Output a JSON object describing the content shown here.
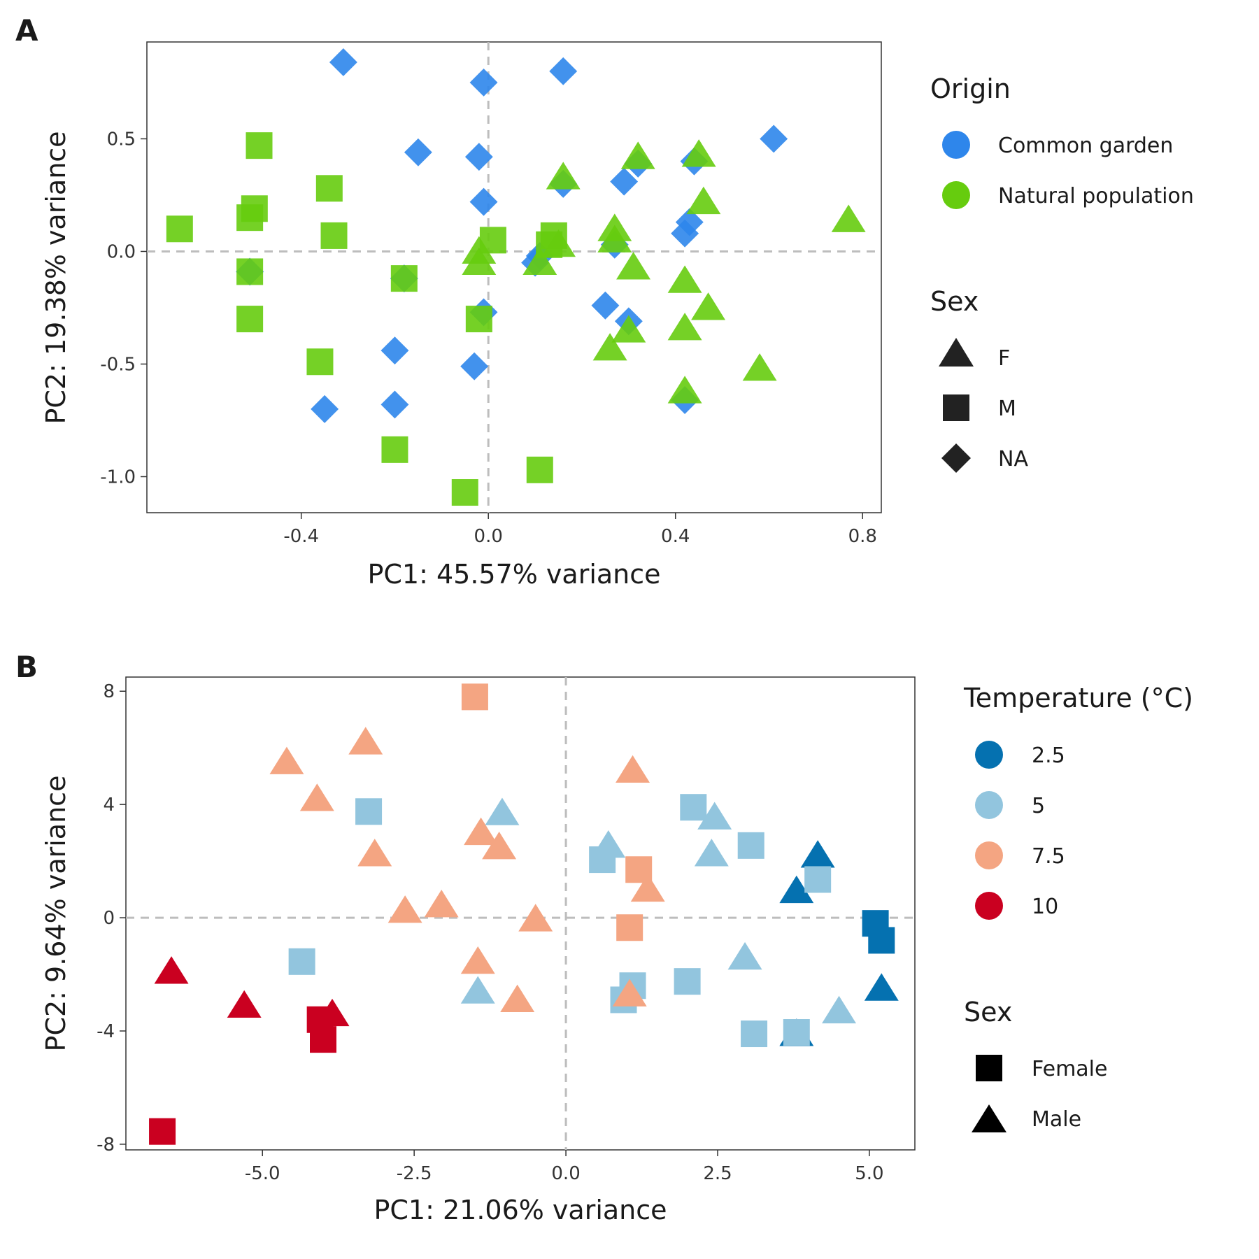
{
  "chart_data": [
    {
      "panel": "A",
      "type": "scatter",
      "xlabel": "PC1: 45.57% variance",
      "ylabel": "PC2: 19.38% variance",
      "xticks": [
        -0.4,
        0.0,
        0.4,
        0.8
      ],
      "xtick_labels": [
        "-0.4",
        "0.0",
        "0.4",
        "0.8"
      ],
      "yticks": [
        -1.0,
        -0.5,
        0.0,
        0.5
      ],
      "ytick_labels": [
        "-1.0",
        "-0.5",
        "0.0",
        "0.5"
      ],
      "xlim": [
        -0.73,
        0.84
      ],
      "ylim": [
        -1.16,
        0.93
      ],
      "reference_lines": {
        "x": 0,
        "y": 0
      },
      "grid": false,
      "color_legend": {
        "title": "Origin",
        "entries": [
          {
            "label": "Common garden",
            "color": "#2E86EB"
          },
          {
            "label": "Natural population",
            "color": "#66CC0E"
          }
        ]
      },
      "shape_legend": {
        "title": "Sex",
        "entries": [
          {
            "label": "F",
            "shape": "triangle"
          },
          {
            "label": "M",
            "shape": "square"
          },
          {
            "label": "NA",
            "shape": "diamond"
          }
        ]
      },
      "series": [
        {
          "group": "Common garden",
          "shape": "diamond",
          "points": [
            [
              -0.31,
              0.84
            ],
            [
              -0.01,
              0.75
            ],
            [
              0.16,
              0.8
            ],
            [
              0.61,
              0.5
            ],
            [
              -0.15,
              0.44
            ],
            [
              -0.02,
              0.42
            ],
            [
              -0.01,
              0.22
            ],
            [
              0.29,
              0.31
            ],
            [
              0.32,
              0.39
            ],
            [
              0.44,
              0.4
            ],
            [
              0.16,
              0.3
            ],
            [
              0.43,
              0.13
            ],
            [
              0.42,
              0.08
            ],
            [
              0.11,
              -0.02
            ],
            [
              0.27,
              0.03
            ],
            [
              -0.51,
              -0.09
            ],
            [
              -0.18,
              -0.12
            ],
            [
              -0.01,
              -0.27
            ],
            [
              0.25,
              -0.24
            ],
            [
              0.3,
              -0.31
            ],
            [
              -0.2,
              -0.44
            ],
            [
              -0.03,
              -0.51
            ],
            [
              -0.35,
              -0.7
            ],
            [
              -0.2,
              -0.68
            ],
            [
              0.42,
              -0.66
            ],
            [
              0.1,
              -0.05
            ]
          ]
        },
        {
          "group": "Natural population",
          "shape": "triangle",
          "points": [
            [
              0.32,
              0.42
            ],
            [
              0.45,
              0.43
            ],
            [
              0.16,
              0.33
            ],
            [
              0.46,
              0.22
            ],
            [
              0.77,
              0.14
            ],
            [
              0.27,
              0.1
            ],
            [
              0.27,
              0.05
            ],
            [
              0.15,
              0.03
            ],
            [
              -0.02,
              0.0
            ],
            [
              -0.02,
              -0.05
            ],
            [
              0.11,
              -0.05
            ],
            [
              0.31,
              -0.07
            ],
            [
              0.42,
              -0.13
            ],
            [
              0.47,
              -0.25
            ],
            [
              0.42,
              -0.34
            ],
            [
              0.3,
              -0.35
            ],
            [
              0.26,
              -0.43
            ],
            [
              0.58,
              -0.52
            ],
            [
              0.42,
              -0.62
            ]
          ]
        },
        {
          "group": "Natural population",
          "shape": "square",
          "points": [
            [
              -0.49,
              0.47
            ],
            [
              -0.34,
              0.28
            ],
            [
              -0.5,
              0.19
            ],
            [
              -0.51,
              0.15
            ],
            [
              -0.66,
              0.1
            ],
            [
              -0.33,
              0.07
            ],
            [
              0.01,
              0.05
            ],
            [
              0.14,
              0.07
            ],
            [
              0.13,
              0.03
            ],
            [
              -0.51,
              -0.09
            ],
            [
              -0.18,
              -0.12
            ],
            [
              -0.02,
              -0.3
            ],
            [
              -0.51,
              -0.3
            ],
            [
              -0.36,
              -0.49
            ],
            [
              -0.2,
              -0.88
            ],
            [
              0.11,
              -0.97
            ],
            [
              -0.05,
              -1.07
            ]
          ]
        }
      ]
    },
    {
      "panel": "B",
      "type": "scatter",
      "xlabel": "PC1: 21.06% variance",
      "ylabel": "PC2: 9.64% variance",
      "xticks": [
        -5.0,
        -2.5,
        0.0,
        2.5,
        5.0
      ],
      "xtick_labels": [
        "-5.0",
        "-2.5",
        "0.0",
        "2.5",
        "5.0"
      ],
      "yticks": [
        -8,
        -4,
        0,
        4,
        8
      ],
      "ytick_labels": [
        "-8",
        "-4",
        "0",
        "4",
        "8"
      ],
      "xlim": [
        -7.25,
        5.75
      ],
      "ylim": [
        -8.2,
        8.5
      ],
      "reference_lines": {
        "x": 0,
        "y": 0
      },
      "grid": false,
      "color_legend": {
        "title": "Temperature (°C)",
        "entries": [
          {
            "label": "2.5",
            "color": "#0571B0"
          },
          {
            "label": "5",
            "color": "#92C5DE"
          },
          {
            "label": "7.5",
            "color": "#F4A582"
          },
          {
            "label": "10",
            "color": "#CA0020"
          }
        ]
      },
      "shape_legend": {
        "title": "Sex",
        "entries": [
          {
            "label": "Female",
            "shape": "square"
          },
          {
            "label": "Male",
            "shape": "triangle"
          }
        ]
      },
      "series": [
        {
          "temperature": "2.5",
          "shape": "square",
          "points": [
            [
              5.1,
              -0.2
            ],
            [
              5.2,
              -0.8
            ]
          ]
        },
        {
          "temperature": "2.5",
          "shape": "triangle",
          "points": [
            [
              4.15,
              2.2
            ],
            [
              3.8,
              0.95
            ],
            [
              5.2,
              -2.5
            ],
            [
              3.8,
              -4.1
            ]
          ]
        },
        {
          "temperature": "5",
          "shape": "square",
          "points": [
            [
              -3.25,
              3.75
            ],
            [
              0.6,
              2.05
            ],
            [
              2.1,
              3.9
            ],
            [
              3.05,
              2.55
            ],
            [
              4.15,
              1.35
            ],
            [
              -4.35,
              -1.55
            ],
            [
              1.1,
              -2.4
            ],
            [
              0.95,
              -2.9
            ],
            [
              2.0,
              -2.25
            ],
            [
              3.1,
              -4.1
            ],
            [
              3.8,
              -4.05
            ]
          ]
        },
        {
          "temperature": "5",
          "shape": "triangle",
          "points": [
            [
              -1.05,
              3.7
            ],
            [
              0.7,
              2.55
            ],
            [
              2.45,
              3.55
            ],
            [
              2.4,
              2.25
            ],
            [
              2.95,
              -1.4
            ],
            [
              -1.45,
              -2.6
            ],
            [
              4.5,
              -3.3
            ]
          ]
        },
        {
          "temperature": "7.5",
          "shape": "square",
          "points": [
            [
              -1.5,
              7.8
            ],
            [
              1.2,
              1.7
            ],
            [
              1.05,
              -0.35
            ]
          ]
        },
        {
          "temperature": "7.5",
          "shape": "triangle",
          "points": [
            [
              -4.6,
              5.5
            ],
            [
              -3.3,
              6.2
            ],
            [
              -4.1,
              4.2
            ],
            [
              1.1,
              5.2
            ],
            [
              -1.4,
              3.0
            ],
            [
              -1.1,
              2.5
            ],
            [
              -3.15,
              2.25
            ],
            [
              1.35,
              1.0
            ],
            [
              -2.65,
              0.25
            ],
            [
              -2.05,
              0.45
            ],
            [
              -0.5,
              -0.05
            ],
            [
              -1.45,
              -1.55
            ],
            [
              -0.8,
              -2.9
            ],
            [
              1.05,
              -2.7
            ]
          ]
        },
        {
          "temperature": "10",
          "shape": "square",
          "points": [
            [
              -4.05,
              -3.6
            ],
            [
              -4.0,
              -4.3
            ],
            [
              -6.65,
              -7.55
            ]
          ]
        },
        {
          "temperature": "10",
          "shape": "triangle",
          "points": [
            [
              -6.5,
              -1.9
            ],
            [
              -5.3,
              -3.1
            ],
            [
              -3.85,
              -3.4
            ]
          ]
        }
      ]
    }
  ]
}
